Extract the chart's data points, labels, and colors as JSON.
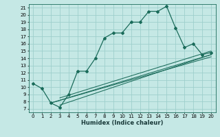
{
  "xlabel": "Humidex (Indice chaleur)",
  "bg_color": "#c5e8e5",
  "grid_color": "#9ecfcc",
  "line_color": "#1a6b5a",
  "xlim": [
    -0.5,
    20.5
  ],
  "ylim": [
    6.5,
    21.5
  ],
  "yticks": [
    7,
    8,
    9,
    10,
    11,
    12,
    13,
    14,
    15,
    16,
    17,
    18,
    19,
    20,
    21
  ],
  "xticks": [
    0,
    1,
    2,
    3,
    4,
    5,
    6,
    7,
    8,
    9,
    10,
    11,
    12,
    13,
    14,
    15,
    16,
    17,
    18,
    19,
    20
  ],
  "main_x": [
    0,
    1,
    2,
    3,
    4,
    5,
    6,
    7,
    8,
    9,
    10,
    11,
    12,
    13,
    14,
    15,
    16,
    17,
    18,
    19,
    20
  ],
  "main_y": [
    10.5,
    9.8,
    7.8,
    7.2,
    9.0,
    12.2,
    12.2,
    14.0,
    16.8,
    17.5,
    17.5,
    19.0,
    19.0,
    20.5,
    20.5,
    21.2,
    18.2,
    15.5,
    16.0,
    14.5,
    14.8
  ],
  "linear_lines": [
    {
      "x": [
        2,
        20
      ],
      "y": [
        7.8,
        14.2
      ]
    },
    {
      "x": [
        2,
        20
      ],
      "y": [
        7.8,
        14.5
      ]
    },
    {
      "x": [
        3,
        20
      ],
      "y": [
        7.5,
        14.5
      ]
    },
    {
      "x": [
        3,
        20
      ],
      "y": [
        8.5,
        15.0
      ]
    }
  ]
}
